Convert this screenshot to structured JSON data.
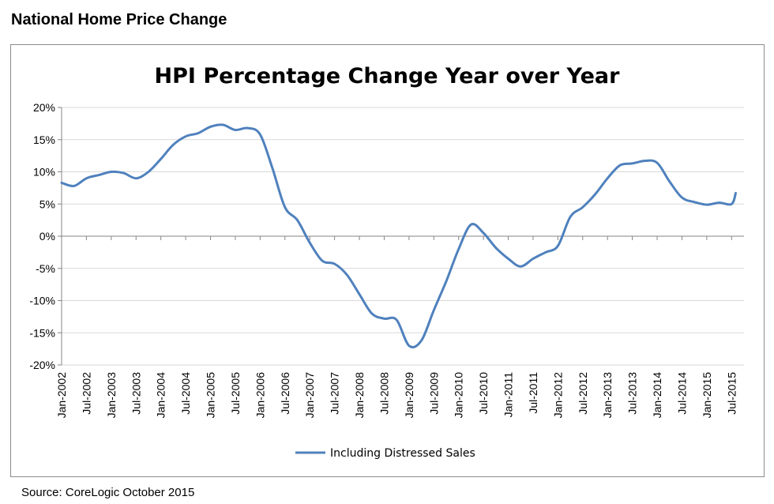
{
  "header": {
    "title": "National Home Price Change"
  },
  "footer": {
    "source": "Source: CoreLogic October 2015"
  },
  "chart_data": {
    "type": "line",
    "title": "HPI Percentage Change Year over Year",
    "xlabel": "",
    "ylabel": "",
    "ylim": [
      -20,
      20
    ],
    "y_ticks": [
      "20%",
      "15%",
      "10%",
      "5%",
      "0%",
      "-5%",
      "-10%",
      "-15%",
      "-20%"
    ],
    "y_tick_values": [
      20,
      15,
      10,
      5,
      0,
      -5,
      -10,
      -15,
      -20
    ],
    "x_tick_labels": [
      "Jan-2002",
      "Jul-2002",
      "Jan-2003",
      "Jul-2003",
      "Jan-2004",
      "Jul-2004",
      "Jan-2005",
      "Jul-2005",
      "Jan-2006",
      "Jul-2006",
      "Jan-2007",
      "Jul-2007",
      "Jan-2008",
      "Jul-2008",
      "Jan-2009",
      "Jul-2009",
      "Jan-2010",
      "Jul-2010",
      "Jan-2011",
      "Jul-2011",
      "Jan-2012",
      "Jul-2012",
      "Jan-2013",
      "Jul-2013",
      "Jan-2014",
      "Jul-2014",
      "Jan-2015",
      "Jul-2015"
    ],
    "x_tick_dates": [
      "2002-01",
      "2002-07",
      "2003-01",
      "2003-07",
      "2004-01",
      "2004-07",
      "2005-01",
      "2005-07",
      "2006-01",
      "2006-07",
      "2007-01",
      "2007-07",
      "2008-01",
      "2008-07",
      "2009-01",
      "2009-07",
      "2010-01",
      "2010-07",
      "2011-01",
      "2011-07",
      "2012-01",
      "2012-07",
      "2013-01",
      "2013-07",
      "2014-01",
      "2014-07",
      "2015-01",
      "2015-07"
    ],
    "grid": "horizontal",
    "legend_position": "bottom",
    "color": "#4f81bd",
    "series": [
      {
        "name": "Including Distressed Sales",
        "x": [
          "2002-01",
          "2002-04",
          "2002-07",
          "2002-10",
          "2003-01",
          "2003-04",
          "2003-07",
          "2003-10",
          "2004-01",
          "2004-04",
          "2004-07",
          "2004-10",
          "2005-01",
          "2005-04",
          "2005-07",
          "2005-10",
          "2006-01",
          "2006-04",
          "2006-07",
          "2006-10",
          "2007-01",
          "2007-04",
          "2007-07",
          "2007-10",
          "2008-01",
          "2008-04",
          "2008-07",
          "2008-10",
          "2009-01",
          "2009-04",
          "2009-07",
          "2009-10",
          "2010-01",
          "2010-04",
          "2010-07",
          "2010-10",
          "2011-01",
          "2011-04",
          "2011-07",
          "2011-10",
          "2012-01",
          "2012-04",
          "2012-07",
          "2012-10",
          "2013-01",
          "2013-04",
          "2013-07",
          "2013-10",
          "2014-01",
          "2014-04",
          "2014-07",
          "2014-10",
          "2015-01",
          "2015-04",
          "2015-07",
          "2015-08"
        ],
        "values": [
          8.3,
          7.8,
          9.0,
          9.5,
          10.0,
          9.8,
          9.0,
          10.0,
          12.0,
          14.2,
          15.5,
          16.0,
          17.0,
          17.3,
          16.5,
          16.8,
          15.8,
          10.5,
          4.5,
          2.5,
          -1.0,
          -3.8,
          -4.3,
          -6.0,
          -9.0,
          -12.0,
          -12.8,
          -13.0,
          -17.0,
          -16.2,
          -11.5,
          -7.0,
          -2.0,
          1.8,
          0.5,
          -1.8,
          -3.5,
          -4.7,
          -3.5,
          -2.5,
          -1.5,
          3.0,
          4.5,
          6.5,
          9.0,
          11.0,
          11.3,
          11.7,
          11.4,
          8.5,
          6.0,
          5.3,
          4.9,
          5.2,
          5.0,
          6.7
        ]
      }
    ]
  }
}
